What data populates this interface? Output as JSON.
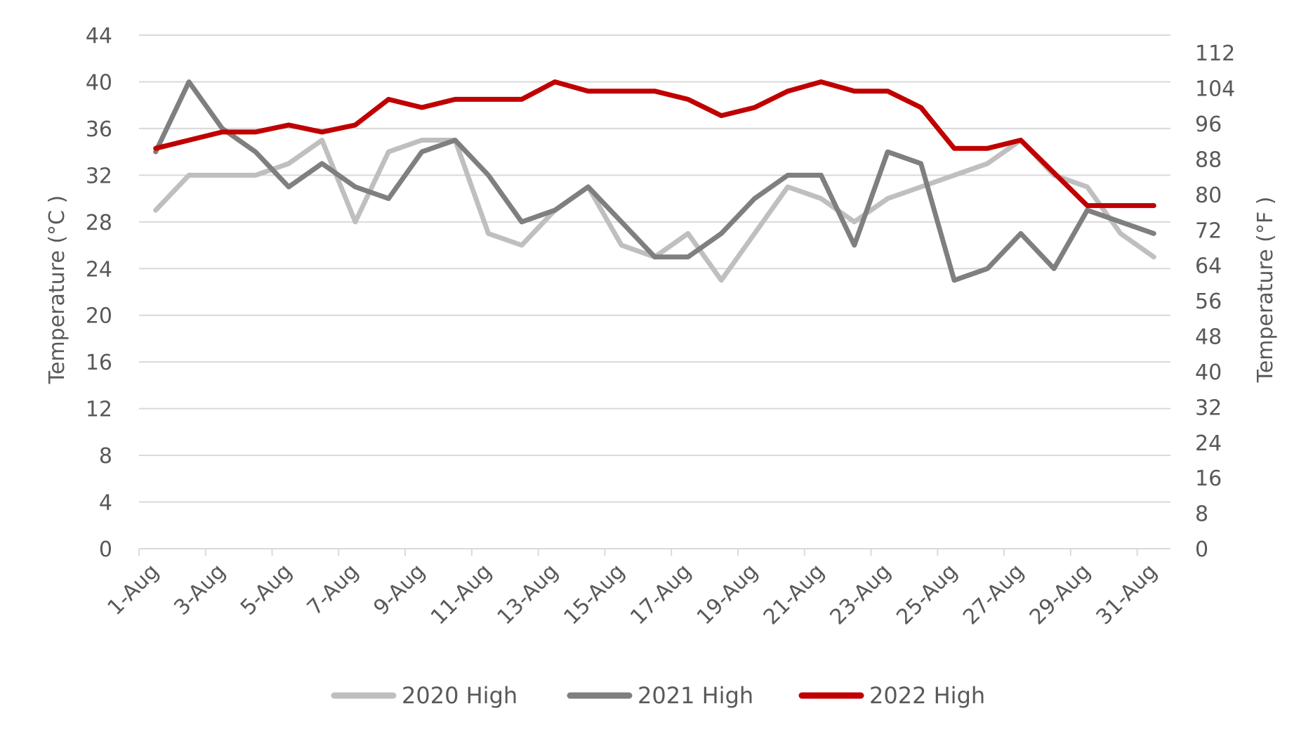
{
  "chart_data": {
    "type": "line",
    "title": "",
    "x": [
      "1-Aug",
      "2-Aug",
      "3-Aug",
      "4-Aug",
      "5-Aug",
      "6-Aug",
      "7-Aug",
      "8-Aug",
      "9-Aug",
      "10-Aug",
      "11-Aug",
      "12-Aug",
      "13-Aug",
      "14-Aug",
      "15-Aug",
      "16-Aug",
      "17-Aug",
      "18-Aug",
      "19-Aug",
      "20-Aug",
      "21-Aug",
      "22-Aug",
      "23-Aug",
      "24-Aug",
      "25-Aug",
      "26-Aug",
      "27-Aug",
      "28-Aug",
      "29-Aug",
      "30-Aug",
      "31-Aug"
    ],
    "x_tick_labels": [
      "1-Aug",
      "3-Aug",
      "5-Aug",
      "7-Aug",
      "9-Aug",
      "11-Aug",
      "13-Aug",
      "15-Aug",
      "17-Aug",
      "19-Aug",
      "21-Aug",
      "23-Aug",
      "25-Aug",
      "27-Aug",
      "29-Aug",
      "31-Aug"
    ],
    "ylabel_left": "Temperature (°C )",
    "ylabel_right": "Temperature (°F )",
    "ylim_left": [
      0,
      44
    ],
    "yticks_left": [
      0,
      4,
      8,
      12,
      16,
      20,
      24,
      28,
      32,
      36,
      40,
      44
    ],
    "ylim_right": [
      0,
      116
    ],
    "yticks_right": [
      0,
      8,
      16,
      24,
      32,
      40,
      48,
      56,
      64,
      72,
      80,
      88,
      96,
      104,
      112
    ],
    "grid": "horizontal",
    "legend_position": "bottom",
    "series": [
      {
        "name": "2020 High",
        "color": "#bfbfbf",
        "values": [
          29,
          32,
          32,
          32,
          33,
          35,
          28,
          34,
          35,
          35,
          27,
          26,
          29,
          31,
          26,
          25,
          27,
          23,
          27,
          31,
          30,
          28,
          30,
          31,
          32,
          33,
          35,
          32,
          31,
          27,
          25
        ]
      },
      {
        "name": "2021 High",
        "color": "#7f7f7f",
        "values": [
          34,
          40,
          36,
          34,
          31,
          33,
          31,
          30,
          34,
          35,
          32,
          28,
          29,
          31,
          28,
          25,
          25,
          27,
          30,
          32,
          32,
          26,
          34,
          33,
          23,
          24,
          27,
          24,
          29,
          28,
          27
        ]
      },
      {
        "name": "2022 High",
        "color": "#c00000",
        "values": [
          34.3,
          35,
          35.7,
          35.7,
          36.3,
          35.7,
          36.3,
          38.5,
          37.8,
          38.5,
          38.5,
          38.5,
          40,
          39.2,
          39.2,
          39.2,
          38.5,
          37.1,
          37.8,
          39.2,
          40,
          39.2,
          39.2,
          37.8,
          34.3,
          34.3,
          35,
          32.2,
          29.4,
          29.4,
          29.4
        ]
      }
    ]
  }
}
